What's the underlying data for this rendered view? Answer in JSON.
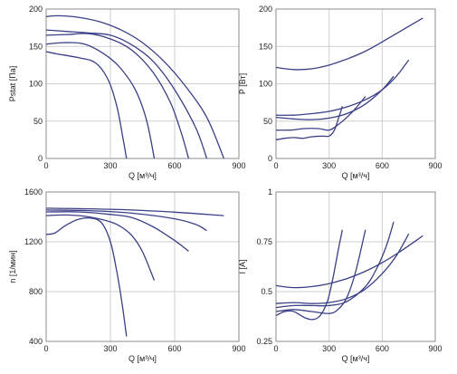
{
  "chart_data": [
    {
      "type": "line",
      "xlabel": "Q [м³/ч]",
      "ylabel": "Pstat [Па]",
      "xlim": [
        0,
        900
      ],
      "ylim": [
        0,
        200
      ],
      "xticks": [
        "0",
        "300",
        "600",
        "900"
      ],
      "yticks": [
        "0",
        "50",
        "100",
        "150",
        "200"
      ],
      "grid": true,
      "series": [
        {
          "x": [
            0,
            60,
            150,
            250,
            350,
            450,
            550,
            650,
            750,
            830
          ],
          "values": [
            190,
            191,
            189,
            183,
            172,
            155,
            130,
            97,
            55,
            0
          ]
        },
        {
          "x": [
            0,
            100,
            200,
            300,
            400,
            500,
            600,
            700,
            750
          ],
          "values": [
            172,
            170,
            168,
            165,
            152,
            130,
            92,
            40,
            0
          ]
        },
        {
          "x": [
            0,
            100,
            200,
            300,
            400,
            500,
            580,
            630,
            665
          ],
          "values": [
            165,
            166,
            167,
            160,
            145,
            115,
            75,
            35,
            0
          ]
        },
        {
          "x": [
            0,
            80,
            180,
            280,
            350,
            420,
            470,
            505
          ],
          "values": [
            153,
            155,
            153,
            138,
            120,
            90,
            50,
            0
          ]
        },
        {
          "x": [
            0,
            50,
            150,
            230,
            290,
            330,
            360,
            375
          ],
          "values": [
            143,
            140,
            135,
            128,
            105,
            70,
            25,
            0
          ]
        }
      ]
    },
    {
      "type": "line",
      "xlabel": "Q [м³/ч]",
      "ylabel": "P [Вт]",
      "xlim": [
        0,
        900
      ],
      "ylim": [
        0,
        200
      ],
      "xticks": [
        "0",
        "300",
        "600",
        "900"
      ],
      "yticks": [
        "0",
        "50",
        "100",
        "150",
        "200"
      ],
      "grid": true,
      "series": [
        {
          "x": [
            0,
            100,
            200,
            300,
            400,
            500,
            600,
            700,
            830
          ],
          "values": [
            122,
            119,
            120,
            125,
            133,
            143,
            156,
            170,
            188
          ]
        },
        {
          "x": [
            0,
            100,
            200,
            300,
            400,
            500,
            600,
            680,
            750
          ],
          "values": [
            58,
            58,
            60,
            63,
            69,
            78,
            92,
            110,
            132
          ]
        },
        {
          "x": [
            0,
            100,
            200,
            300,
            400,
            500,
            600,
            665
          ],
          "values": [
            55,
            53,
            52,
            54,
            60,
            72,
            92,
            110
          ]
        },
        {
          "x": [
            0,
            80,
            160,
            240,
            300,
            350,
            400,
            450,
            505
          ],
          "values": [
            38,
            38,
            40,
            40,
            38,
            45,
            55,
            67,
            83
          ]
        },
        {
          "x": [
            0,
            50,
            100,
            150,
            200,
            260,
            300,
            330,
            355,
            375
          ],
          "values": [
            25,
            27,
            28,
            27,
            29,
            30,
            30,
            38,
            55,
            70
          ]
        }
      ]
    },
    {
      "type": "line",
      "xlabel": "Q [м³/ч]",
      "ylabel": "n [1/мин]",
      "xlim": [
        0,
        900
      ],
      "ylim": [
        400,
        1600
      ],
      "xticks": [
        "0",
        "300",
        "600",
        "900"
      ],
      "yticks": [
        "400",
        "800",
        "1200",
        "1600"
      ],
      "grid": true,
      "series": [
        {
          "x": [
            0,
            200,
            400,
            600,
            830
          ],
          "values": [
            1470,
            1465,
            1455,
            1438,
            1410
          ]
        },
        {
          "x": [
            0,
            200,
            400,
            600,
            700,
            750
          ],
          "values": [
            1455,
            1450,
            1430,
            1385,
            1338,
            1290
          ]
        },
        {
          "x": [
            0,
            150,
            300,
            400,
            500,
            600,
            665
          ],
          "values": [
            1440,
            1440,
            1420,
            1395,
            1320,
            1210,
            1125
          ]
        },
        {
          "x": [
            0,
            100,
            200,
            300,
            350,
            400,
            450,
            505
          ],
          "values": [
            1410,
            1415,
            1400,
            1360,
            1320,
            1250,
            1120,
            890
          ]
        },
        {
          "x": [
            0,
            40,
            90,
            150,
            210,
            260,
            300,
            330,
            355,
            375
          ],
          "values": [
            1260,
            1270,
            1330,
            1380,
            1390,
            1350,
            1200,
            960,
            700,
            440
          ]
        }
      ]
    },
    {
      "type": "line",
      "xlabel": "Q [м³/ч]",
      "ylabel": "I [A]",
      "xlim": [
        0,
        900
      ],
      "ylim": [
        0.25,
        1.0
      ],
      "xticks": [
        "0",
        "300",
        "600",
        "900"
      ],
      "yticks": [
        "0.25",
        "0.5",
        "0.75",
        "1"
      ],
      "grid": true,
      "series": [
        {
          "x": [
            0,
            100,
            200,
            300,
            400,
            500,
            600,
            700,
            830
          ],
          "values": [
            0.53,
            0.52,
            0.525,
            0.54,
            0.565,
            0.6,
            0.645,
            0.7,
            0.78
          ]
        },
        {
          "x": [
            0,
            100,
            200,
            300,
            400,
            500,
            600,
            680,
            750
          ],
          "values": [
            0.44,
            0.445,
            0.44,
            0.445,
            0.465,
            0.51,
            0.59,
            0.68,
            0.79
          ]
        },
        {
          "x": [
            0,
            100,
            200,
            300,
            400,
            500,
            560,
            620,
            665
          ],
          "values": [
            0.42,
            0.43,
            0.43,
            0.43,
            0.45,
            0.52,
            0.6,
            0.72,
            0.85
          ]
        },
        {
          "x": [
            0,
            100,
            200,
            300,
            350,
            400,
            450,
            505
          ],
          "values": [
            0.4,
            0.41,
            0.4,
            0.39,
            0.41,
            0.47,
            0.6,
            0.81
          ]
        },
        {
          "x": [
            0,
            50,
            100,
            160,
            210,
            250,
            290,
            320,
            350,
            375
          ],
          "values": [
            0.38,
            0.4,
            0.4,
            0.37,
            0.36,
            0.38,
            0.45,
            0.56,
            0.7,
            0.81
          ]
        }
      ]
    }
  ],
  "colors": {
    "curve": "#3a3f86",
    "grid": "#cfcfcf",
    "frame": "#8c8c8c"
  }
}
